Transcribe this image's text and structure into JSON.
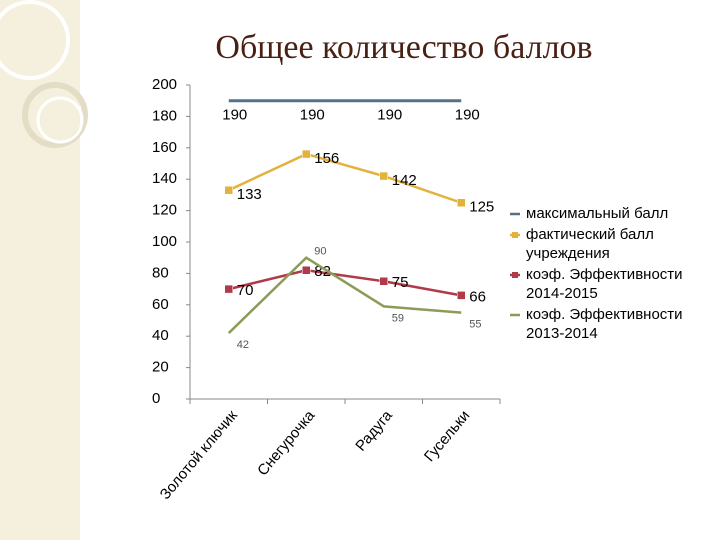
{
  "chart_data": {
    "type": "line",
    "title": "Общее количество баллов",
    "categories": [
      "Золотой ключик",
      "Снегурочка",
      "Радуга",
      "Гусельки"
    ],
    "series": [
      {
        "name": "максимальный балл",
        "color": "#557089",
        "marker": false,
        "values": [
          190,
          190,
          190,
          190
        ]
      },
      {
        "name": "фактический балл учреждения",
        "color": "#e3b23c",
        "marker": true,
        "values": [
          133,
          156,
          142,
          125
        ]
      },
      {
        "name": "коэф. Эффективности 2014-2015",
        "color": "#b03a48",
        "marker": true,
        "values": [
          70,
          82,
          75,
          66
        ]
      },
      {
        "name": "коэф. Эффективности 2013-2014",
        "color": "#8a9c58",
        "marker": false,
        "values": [
          42,
          90,
          59,
          55
        ]
      }
    ],
    "ylim": [
      0,
      200
    ],
    "yticks": [
      0,
      20,
      40,
      60,
      80,
      100,
      120,
      140,
      160,
      180,
      200
    ],
    "grid": false,
    "legend": "right"
  }
}
